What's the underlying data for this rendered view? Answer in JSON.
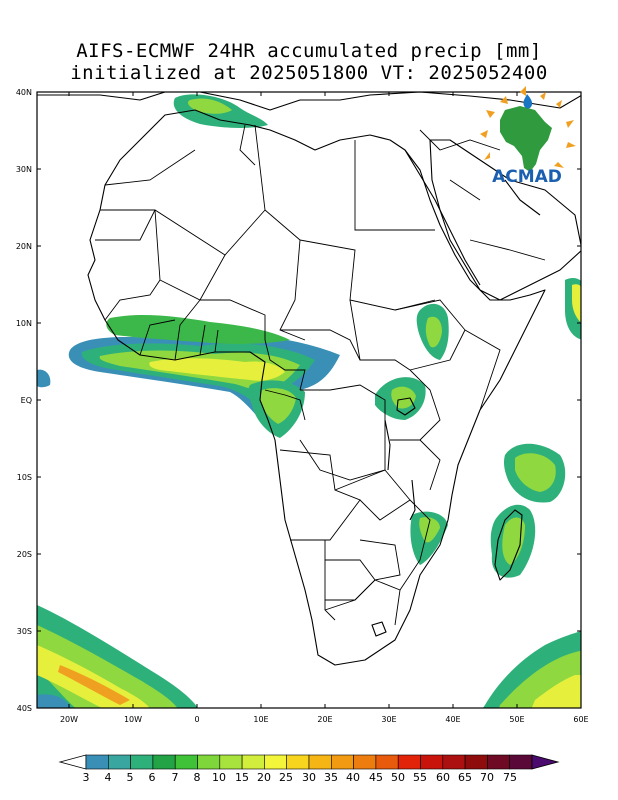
{
  "title_line1": "AIFS-ECMWF 24HR accumulated precip [mm]",
  "title_line2": "initialized at 2025051800 VT: 2025052400",
  "logo_text": "ACMAD",
  "lat_labels": [
    "40N",
    "30N",
    "20N",
    "10N",
    "EQ",
    "10S",
    "20S",
    "30S",
    "40S"
  ],
  "lon_labels": [
    "20W",
    "10W",
    "0",
    "10E",
    "20E",
    "30E",
    "40E",
    "50E",
    "60E"
  ],
  "colorbar": {
    "labels": [
      "3",
      "4",
      "5",
      "6",
      "7",
      "8",
      "10",
      "15",
      "20",
      "25",
      "30",
      "35",
      "40",
      "45",
      "50",
      "55",
      "60",
      "65",
      "70",
      "75"
    ],
    "colors": [
      "#3a8fb7",
      "#3aa6a0",
      "#2eb07a",
      "#21a346",
      "#40c238",
      "#7fd63a",
      "#a8e23c",
      "#d2ee3c",
      "#f3f53a",
      "#f7d51f",
      "#f5b515",
      "#f19a12",
      "#ee7d10",
      "#e85a0c",
      "#e2230a",
      "#c9140c",
      "#ad1010",
      "#8f0c0c",
      "#6e0a24",
      "#5a0838"
    ],
    "under_color": "#ffffff",
    "over_color": "#4b0a6e"
  },
  "precip_colors": {
    "blue": "#3a8fb7",
    "teal": "#2eb07a",
    "green": "#3cb84a",
    "lightgreen": "#8fd840",
    "yellow": "#e6f03c",
    "orange": "#f0a020",
    "red": "#d03020"
  }
}
